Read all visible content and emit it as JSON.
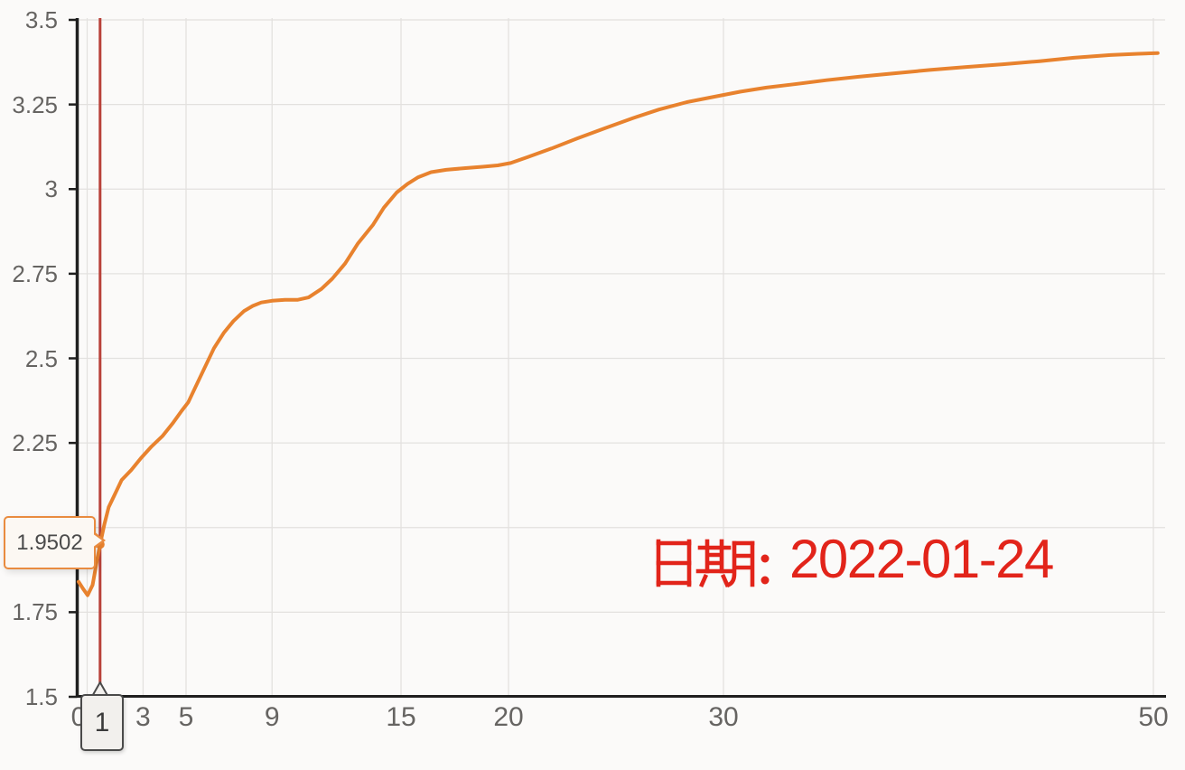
{
  "chart_data": {
    "type": "line",
    "title": "",
    "xlabel": "",
    "ylabel": "",
    "xlim": [
      0,
      50.7
    ],
    "ylim": [
      1.5,
      3.5
    ],
    "grid": true,
    "legend": null,
    "x_ticks": {
      "values": [
        0,
        3,
        5,
        9,
        15,
        20,
        30,
        50
      ],
      "labels": [
        "0",
        "3",
        "5",
        "9",
        "15",
        "20",
        "30",
        "50"
      ]
    },
    "y_ticks": {
      "values": [
        1.5,
        1.75,
        2,
        2.25,
        2.5,
        2.75,
        3,
        3.25,
        3.5
      ],
      "labels": [
        "1.5",
        "1.75",
        "2",
        "2.25",
        "2.5",
        "2.75",
        "3",
        "3.25",
        "3.5"
      ]
    },
    "series": [
      {
        "color": "#e8822e",
        "points": [
          [
            0,
            1.84
          ],
          [
            0.2,
            1.82
          ],
          [
            0.42,
            1.8
          ],
          [
            0.65,
            1.83
          ],
          [
            0.85,
            1.9
          ],
          [
            1,
            1.9502
          ],
          [
            1.2,
            2.01
          ],
          [
            1.4,
            2.06
          ],
          [
            1.7,
            2.1
          ],
          [
            2.0,
            2.14
          ],
          [
            2.45,
            2.17
          ],
          [
            2.9,
            2.205
          ],
          [
            3.4,
            2.24
          ],
          [
            3.9,
            2.27
          ],
          [
            4.4,
            2.31
          ],
          [
            4.8,
            2.345
          ],
          [
            5.1,
            2.37
          ],
          [
            5.4,
            2.41
          ],
          [
            5.85,
            2.47
          ],
          [
            6.3,
            2.53
          ],
          [
            6.75,
            2.575
          ],
          [
            7.2,
            2.61
          ],
          [
            7.7,
            2.64
          ],
          [
            8.1,
            2.655
          ],
          [
            8.5,
            2.665
          ],
          [
            9.0,
            2.67
          ],
          [
            9.6,
            2.673
          ],
          [
            10.2,
            2.673
          ],
          [
            10.7,
            2.68
          ],
          [
            11.3,
            2.705
          ],
          [
            11.8,
            2.735
          ],
          [
            12.4,
            2.78
          ],
          [
            13.0,
            2.84
          ],
          [
            13.7,
            2.895
          ],
          [
            14.2,
            2.945
          ],
          [
            14.8,
            2.99
          ],
          [
            15.3,
            3.015
          ],
          [
            15.8,
            3.035
          ],
          [
            16.4,
            3.05
          ],
          [
            17.1,
            3.057
          ],
          [
            18.0,
            3.062
          ],
          [
            18.8,
            3.066
          ],
          [
            19.5,
            3.07
          ],
          [
            20.1,
            3.077
          ],
          [
            20.9,
            3.095
          ],
          [
            22.0,
            3.12
          ],
          [
            23.2,
            3.15
          ],
          [
            24.5,
            3.18
          ],
          [
            25.8,
            3.21
          ],
          [
            27.0,
            3.235
          ],
          [
            28.3,
            3.257
          ],
          [
            29.5,
            3.272
          ],
          [
            30.8,
            3.288
          ],
          [
            32.0,
            3.3
          ],
          [
            33.3,
            3.31
          ],
          [
            34.8,
            3.322
          ],
          [
            36.3,
            3.332
          ],
          [
            37.9,
            3.342
          ],
          [
            39.6,
            3.352
          ],
          [
            41.3,
            3.361
          ],
          [
            43.0,
            3.369
          ],
          [
            44.7,
            3.378
          ],
          [
            46.3,
            3.388
          ],
          [
            48.0,
            3.396
          ],
          [
            49.3,
            3.4
          ],
          [
            50.2,
            3.402
          ]
        ]
      }
    ],
    "marker": {
      "x": 1,
      "value": 1.9502,
      "tooltip_text": "1.9502",
      "axis_label": "1",
      "pointer_color": "#b9423a"
    },
    "annotation": {
      "text": "日期：2022-01-24",
      "prefix": "日期：",
      "date": "2022-01-24",
      "color": "#e2241a"
    },
    "colors": {
      "line": "#e8822e",
      "grid": "#e3e1df",
      "axis": "#1f1f1f",
      "tick_label": "#666462",
      "tooltip_border": "#e98b3f",
      "tooltip_bg": "#fcf8f3"
    }
  }
}
